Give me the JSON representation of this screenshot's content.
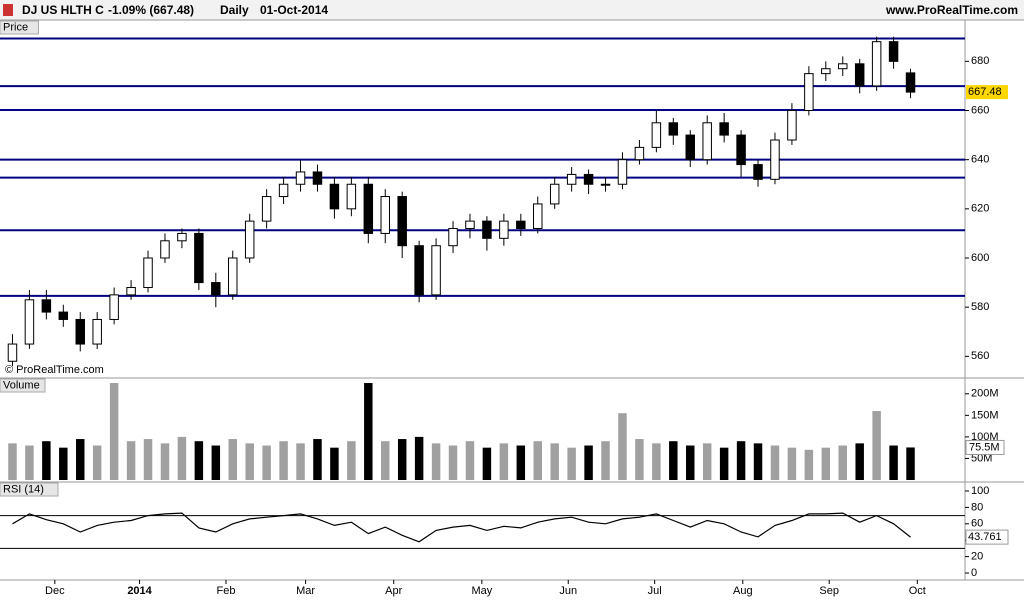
{
  "chart_data": [
    {
      "type": "candlestick",
      "header": {
        "title": "DJ US HLTH C",
        "change": "-1.09% (667.48)",
        "period": "Daily",
        "date": "01-Oct-2014",
        "site": "www.ProRealTime.com"
      },
      "label": "Price",
      "watermark": "© ProRealTime.com",
      "open": [
        558,
        565,
        583,
        578,
        575,
        565,
        575,
        585,
        588,
        600,
        607,
        610,
        590,
        585,
        600,
        615,
        625,
        630,
        635,
        630,
        620,
        630,
        610,
        625,
        605,
        585,
        605,
        612,
        615,
        608,
        615,
        612,
        622,
        630,
        634,
        630,
        630,
        640,
        645,
        655,
        650,
        640,
        655,
        650,
        638,
        632,
        648,
        660,
        675,
        677,
        679,
        670,
        688,
        675.3
      ],
      "high": [
        569,
        587,
        587,
        581,
        578,
        578,
        588,
        591,
        603,
        610,
        612,
        612,
        594,
        603,
        618,
        628,
        633,
        640,
        638,
        633,
        633,
        633,
        628,
        627,
        607,
        608,
        615,
        618,
        617,
        618,
        618,
        625,
        633,
        637,
        636,
        633,
        643,
        648,
        660,
        657,
        652,
        658,
        659,
        652,
        640,
        651,
        663,
        678,
        680,
        682,
        681,
        690,
        690,
        677
      ],
      "low": [
        556,
        563,
        575,
        572,
        562,
        563,
        573,
        583,
        586,
        598,
        604,
        587,
        580,
        583,
        598,
        612,
        622,
        627,
        627,
        616,
        617,
        606,
        606,
        600,
        582,
        583,
        602,
        608,
        603,
        605,
        609,
        610,
        620,
        627,
        626,
        627,
        628,
        638,
        643,
        646,
        637,
        638,
        647,
        633,
        629,
        630,
        646,
        658,
        672,
        674,
        667,
        668,
        677,
        665
      ],
      "close": [
        565,
        583,
        578,
        575,
        565,
        575,
        585,
        588,
        600,
        607,
        610,
        590,
        585,
        600,
        615,
        625,
        630,
        635,
        630,
        620,
        630,
        610,
        625,
        605,
        585,
        605,
        612,
        615,
        608,
        615,
        612,
        622,
        630,
        634,
        630,
        630,
        640,
        645,
        655,
        650,
        640,
        655,
        650,
        638,
        632,
        648,
        660,
        675,
        677,
        679,
        670,
        688,
        680,
        667.48
      ],
      "up_color": "#ffffff",
      "down_color": "#000000",
      "levels": [
        689.3,
        669.9,
        660.2,
        640,
        632.7,
        611.3,
        584.6
      ],
      "level_color": "#000080",
      "last_color": "#ffd700",
      "xlim": [
        0,
        54
      ],
      "ylim": [
        552,
        696
      ],
      "yticks": [
        560,
        580,
        600,
        620,
        640,
        660,
        680
      ]
    },
    {
      "type": "bar",
      "label": "Volume",
      "values": [
        85,
        80,
        90,
        75,
        95,
        80,
        225,
        90,
        95,
        85,
        100,
        90,
        80,
        95,
        85,
        80,
        90,
        85,
        95,
        75,
        90,
        225,
        90,
        95,
        100,
        85,
        80,
        90,
        75,
        85,
        80,
        90,
        85,
        75,
        80,
        90,
        155,
        95,
        85,
        90,
        80,
        85,
        75,
        90,
        85,
        80,
        75,
        70,
        75,
        80,
        85,
        160,
        80,
        75.5
      ],
      "value_labels": [
        null,
        null,
        null,
        null,
        null,
        null,
        null,
        null,
        null,
        null,
        null,
        null,
        null,
        null,
        null,
        null,
        null,
        null,
        null,
        null,
        null,
        null,
        null,
        null,
        null,
        null,
        null,
        null,
        null,
        null,
        null,
        null,
        null,
        null,
        null,
        null,
        null,
        null,
        null,
        null,
        null,
        null,
        null,
        null,
        null,
        null,
        null,
        null,
        null,
        null,
        null,
        null,
        null,
        "75.5M"
      ],
      "up_color": "#a0a0a0",
      "down_color": "#000000",
      "xlim": [
        0,
        54
      ],
      "ylim": [
        0,
        232
      ],
      "yticks": [
        {
          "value": 50,
          "label": "50M"
        },
        {
          "value": 100,
          "label": "100M"
        },
        {
          "value": 150,
          "label": "150M"
        },
        {
          "value": 200,
          "label": "200M"
        }
      ]
    },
    {
      "type": "line",
      "label": "RSI (14)",
      "values": [
        60,
        72,
        65,
        60,
        50,
        58,
        62,
        64,
        70,
        72,
        73,
        55,
        50,
        60,
        66,
        68,
        70,
        72,
        66,
        58,
        62,
        48,
        56,
        46,
        38,
        52,
        56,
        58,
        52,
        57,
        55,
        62,
        66,
        68,
        62,
        60,
        66,
        68,
        72,
        64,
        56,
        64,
        60,
        50,
        44,
        58,
        64,
        72,
        72,
        73,
        62,
        70,
        60,
        43.761
      ],
      "color": "#000000",
      "levels": [
        30,
        70
      ],
      "xlim": [
        0,
        54
      ],
      "ylim": [
        -8.5,
        108.5
      ],
      "yticks": [
        0,
        20,
        40,
        60,
        80,
        100
      ],
      "xticks": [
        {
          "value": 3.0,
          "label": "Dec"
        },
        {
          "value": 8.0,
          "label": "2014",
          "bold": true
        },
        {
          "value": 13.1,
          "label": "Feb"
        },
        {
          "value": 17.8,
          "label": "Mar"
        },
        {
          "value": 23.0,
          "label": "Apr"
        },
        {
          "value": 28.2,
          "label": "May"
        },
        {
          "value": 33.3,
          "label": "Jun"
        },
        {
          "value": 38.4,
          "label": "Jul"
        },
        {
          "value": 43.6,
          "label": "Aug"
        },
        {
          "value": 48.7,
          "label": "Sep"
        },
        {
          "value": 53.9,
          "label": "Oct"
        }
      ]
    }
  ]
}
